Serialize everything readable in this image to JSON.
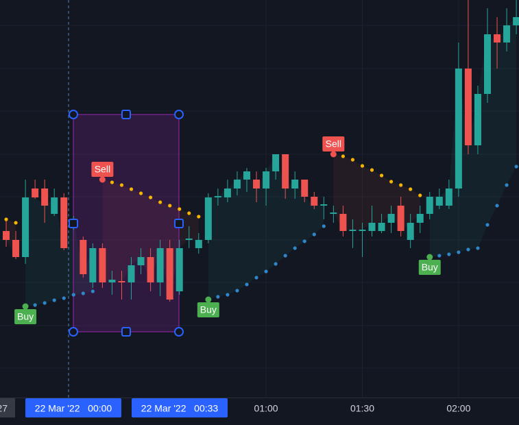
{
  "chart_data": {
    "type": "candlestick",
    "categories": [
      null,
      null,
      null,
      null,
      null,
      null,
      null,
      null,
      null,
      null,
      null,
      null,
      null,
      null,
      null,
      null,
      null,
      null,
      null,
      null,
      null,
      null,
      null,
      null,
      null,
      null,
      null,
      "01:00",
      null,
      null,
      null,
      null,
      null,
      null,
      null,
      null,
      null,
      "01:30",
      null,
      null,
      null,
      null,
      null,
      null,
      null,
      null,
      null,
      "02:00",
      null,
      null,
      null,
      null,
      null,
      null
    ],
    "open": [
      243,
      230,
      205,
      305,
      305,
      268,
      292,
      250,
      230,
      168,
      218,
      168,
      170,
      168,
      193,
      205,
      168,
      218,
      155,
      230,
      218,
      230,
      292,
      292,
      305,
      318,
      318,
      305,
      330,
      355,
      305,
      318,
      293,
      280,
      268,
      268,
      243,
      243,
      243,
      243,
      255,
      280,
      230,
      255,
      268,
      280,
      280,
      305,
      480,
      368,
      443,
      530,
      518,
      543
    ],
    "high": [
      260,
      243,
      318,
      318,
      318,
      305,
      298,
      265,
      235,
      225,
      225,
      185,
      185,
      205,
      218,
      218,
      230,
      230,
      230,
      250,
      240,
      298,
      305,
      318,
      330,
      335,
      330,
      335,
      355,
      355,
      330,
      318,
      300,
      293,
      280,
      280,
      260,
      255,
      280,
      268,
      280,
      293,
      268,
      280,
      300,
      305,
      318,
      518,
      580,
      455,
      568,
      555,
      568,
      580
    ],
    "low": [
      220,
      202,
      195,
      290,
      255,
      265,
      215,
      245,
      175,
      160,
      160,
      150,
      143,
      143,
      180,
      155,
      148,
      140,
      150,
      218,
      210,
      225,
      280,
      285,
      295,
      300,
      285,
      280,
      318,
      290,
      290,
      285,
      275,
      260,
      255,
      235,
      218,
      205,
      235,
      240,
      240,
      235,
      218,
      240,
      260,
      275,
      275,
      293,
      355,
      355,
      430,
      480,
      505,
      530
    ],
    "close": [
      230,
      205,
      292,
      292,
      280,
      292,
      218,
      260,
      180,
      218,
      168,
      172,
      168,
      193,
      205,
      168,
      218,
      143,
      218,
      232,
      230,
      292,
      294,
      305,
      318,
      330,
      305,
      330,
      355,
      305,
      318,
      293,
      280,
      282,
      270,
      243,
      245,
      245,
      255,
      255,
      268,
      243,
      255,
      268,
      293,
      293,
      305,
      480,
      368,
      443,
      530,
      518,
      543,
      555
    ],
    "sar": [
      260,
      255,
      133,
      135,
      138,
      142,
      145,
      150,
      152,
      155,
      318,
      314,
      310,
      304,
      298,
      292,
      285,
      280,
      275,
      269,
      264,
      143,
      147,
      150,
      156,
      165,
      175,
      184,
      195,
      207,
      218,
      228,
      238,
      250,
      355,
      352,
      347,
      338,
      332,
      324,
      315,
      310,
      304,
      295,
      205,
      207,
      209,
      212,
      216,
      218,
      252,
      280,
      310,
      337
    ],
    "ylim": [
      0,
      580
    ],
    "up_color": "#26a69a",
    "down_color": "#ef5350",
    "sar_up_color": "#2f86c8",
    "sar_down_color": "#f5b400",
    "buy_color": "#4caf50",
    "sell_color": "#ef5350",
    "signal_labels": {
      "buy": "Buy",
      "sell": "Sell"
    },
    "grid": true,
    "cut_label": "27",
    "selection": {
      "start_label": "22 Mar '22   00:00",
      "end_label": "22 Mar '22   00:33"
    }
  }
}
